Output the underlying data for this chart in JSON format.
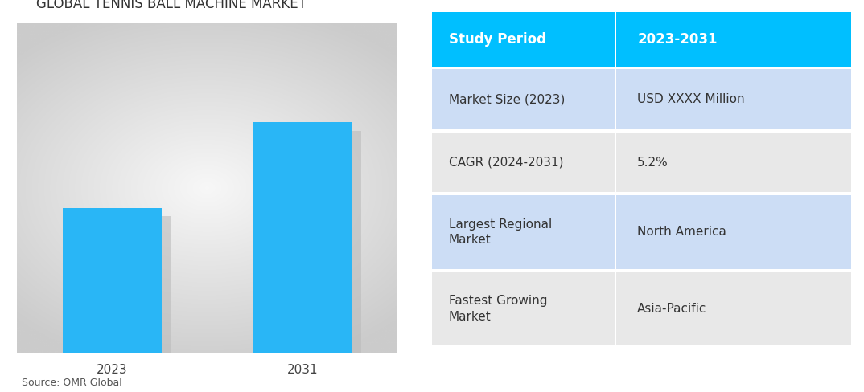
{
  "title": "GLOBAL TENNIS BALL MACHINE MARKET",
  "bar_years": [
    "2023",
    "2031"
  ],
  "bar_values": [
    0.44,
    0.7
  ],
  "bar_color": "#29B6F6",
  "shadow_color": "#BBBBBB",
  "source_text": "Source: OMR Global",
  "table_header_bg": "#00BFFF",
  "table_header_text_color": "#FFFFFF",
  "table_row1_bg": "#CCDDF5",
  "table_row2_bg": "#E8E8E8",
  "table_row3_bg": "#CCDDF5",
  "table_row4_bg": "#E8E8E8",
  "table_data": [
    [
      "Study Period",
      "2023-2031"
    ],
    [
      "Market Size (2023)",
      "USD XXXX Million"
    ],
    [
      "CAGR (2024-2031)",
      "5.2%"
    ],
    [
      "Largest Regional\nMarket",
      "North America"
    ],
    [
      "Fastest Growing\nMarket",
      "Asia-Pacific"
    ]
  ],
  "table_text_color": "#333333",
  "title_fontsize": 12,
  "tick_fontsize": 11,
  "source_fontsize": 9,
  "table_fontsize": 11
}
